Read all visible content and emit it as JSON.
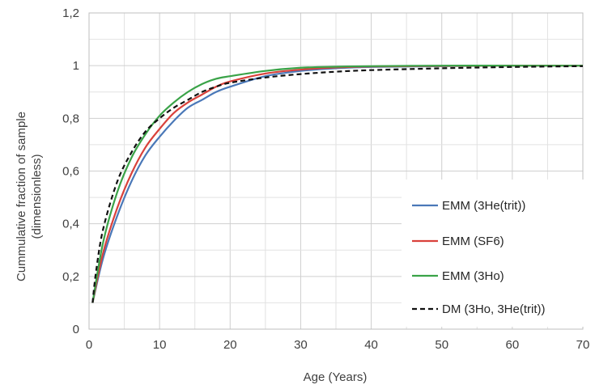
{
  "chart_data": {
    "type": "line",
    "xlabel": "Age (Years)",
    "ylabel": [
      "Cummulative fraction of sample",
      "(dimensionless)"
    ],
    "xlim": [
      0,
      70
    ],
    "ylim": [
      0,
      1.2
    ],
    "x_ticks": [
      0,
      10,
      20,
      30,
      40,
      50,
      60,
      70
    ],
    "x_tick_labels": [
      "0",
      "10",
      "20",
      "30",
      "40",
      "50",
      "60",
      "70"
    ],
    "y_ticks": [
      0,
      0.2,
      0.4,
      0.6,
      0.8,
      1.0,
      1.2
    ],
    "y_tick_labels": [
      "0",
      "0,2",
      "0,4",
      "0,6",
      "0,8",
      "1",
      "1,2"
    ],
    "grid": true,
    "legend_position": "bottom-right",
    "series": [
      {
        "name": "EMM (3He(trit))",
        "color": "#4a78b8",
        "dash": "solid",
        "x": [
          0.5,
          2,
          4,
          6,
          8,
          10,
          12,
          14,
          16,
          18,
          20,
          25,
          30,
          35,
          40,
          50,
          60,
          70
        ],
        "y": [
          0.1,
          0.27,
          0.43,
          0.56,
          0.66,
          0.73,
          0.79,
          0.84,
          0.87,
          0.9,
          0.92,
          0.96,
          0.98,
          0.99,
          0.995,
          0.998,
          1.0,
          1.0
        ]
      },
      {
        "name": "EMM (SF6)",
        "color": "#d9413b",
        "dash": "solid",
        "x": [
          0.5,
          2,
          4,
          6,
          8,
          10,
          12,
          14,
          16,
          18,
          20,
          25,
          30,
          35,
          40,
          50,
          60,
          70
        ],
        "y": [
          0.1,
          0.29,
          0.46,
          0.59,
          0.69,
          0.76,
          0.82,
          0.86,
          0.89,
          0.92,
          0.94,
          0.97,
          0.985,
          0.993,
          0.997,
          0.999,
          1.0,
          1.0
        ]
      },
      {
        "name": "EMM (3Ho)",
        "color": "#3aa348",
        "dash": "solid",
        "x": [
          0.5,
          2,
          4,
          6,
          8,
          10,
          12,
          14,
          16,
          18,
          20,
          25,
          30,
          35,
          40,
          50,
          60,
          70
        ],
        "y": [
          0.1,
          0.33,
          0.52,
          0.65,
          0.74,
          0.81,
          0.86,
          0.9,
          0.93,
          0.95,
          0.96,
          0.98,
          0.992,
          0.996,
          0.998,
          1.0,
          1.0,
          1.0
        ]
      },
      {
        "name": "DM (3Ho, 3He(trit))",
        "color": "#111111",
        "dash": "dashed",
        "x": [
          0.5,
          1,
          2,
          4,
          6,
          8,
          10,
          12,
          14,
          16,
          18,
          20,
          25,
          30,
          35,
          40,
          50,
          60,
          70
        ],
        "y": [
          0.1,
          0.22,
          0.38,
          0.56,
          0.67,
          0.75,
          0.8,
          0.84,
          0.87,
          0.9,
          0.92,
          0.935,
          0.955,
          0.968,
          0.977,
          0.983,
          0.99,
          0.995,
          0.998
        ]
      }
    ]
  }
}
